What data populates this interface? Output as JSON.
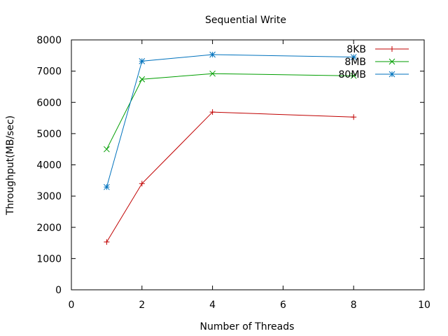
{
  "chart_data": {
    "type": "line",
    "title": "Sequential Write",
    "xlabel": "Number of Threads",
    "ylabel": "Throughput(MB/sec)",
    "xlim": [
      0,
      10
    ],
    "ylim": [
      0,
      8000
    ],
    "xticks": [
      0,
      2,
      4,
      6,
      8,
      10
    ],
    "yticks": [
      0,
      1000,
      2000,
      3000,
      4000,
      5000,
      6000,
      7000,
      8000
    ],
    "grid": false,
    "legend_position": "top-right",
    "series": [
      {
        "name": "8KB",
        "color": "#c00000",
        "marker": "plus",
        "x": [
          1,
          2,
          4,
          8
        ],
        "y": [
          1530,
          3400,
          5690,
          5530
        ]
      },
      {
        "name": "8MB",
        "color": "#009e00",
        "marker": "cross",
        "x": [
          1,
          2,
          4,
          8
        ],
        "y": [
          4500,
          6740,
          6920,
          6850
        ]
      },
      {
        "name": "80MB",
        "color": "#0072bd",
        "marker": "star",
        "x": [
          1,
          2,
          4,
          8
        ],
        "y": [
          3290,
          7320,
          7530,
          7450
        ]
      }
    ]
  }
}
